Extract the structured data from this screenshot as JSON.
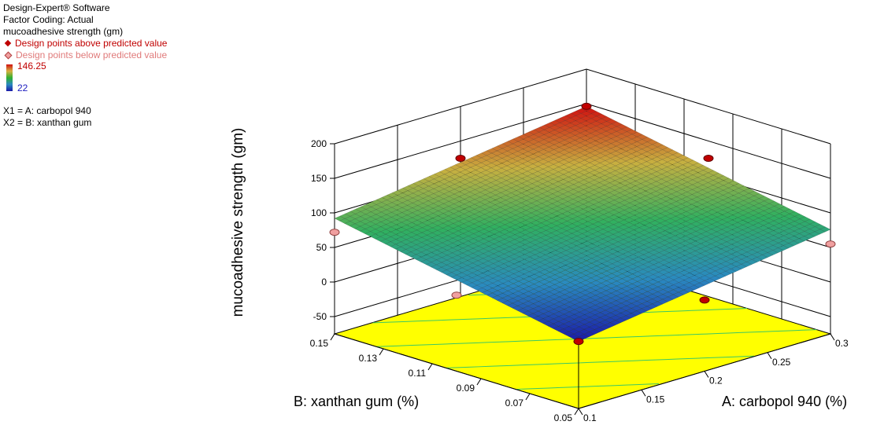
{
  "legend": {
    "software": "Design-Expert® Software",
    "coding": "Factor Coding: Actual",
    "response": "mucoadhesive strength (gm)",
    "above": "Design points above predicted value",
    "below": "Design points below predicted value",
    "cb_max": "146.25",
    "cb_min": "22",
    "x1": "X1 = A: carbopol 940",
    "x2": "X2 = B: xanthan gum"
  },
  "colors": {
    "above": "#c00000",
    "below": "#f0a0a0",
    "floor": "#ffff00",
    "contour": "#3cc864"
  },
  "chart_data": {
    "type": "surface",
    "title": "",
    "xlabel": "A: carbopol 940 (%)",
    "ylabel": "B: xanthan gum (%)",
    "zlabel": "mucoadhesive strength (gm)",
    "x_ticks": [
      "0.1",
      "0.15",
      "0.2",
      "0.25",
      "0.3"
    ],
    "y_ticks": [
      "0.05",
      "0.07",
      "0.09",
      "0.11",
      "0.13",
      "0.15"
    ],
    "z_ticks": [
      "-50",
      "0",
      "50",
      "100",
      "150",
      "200"
    ],
    "xlim": [
      0.1,
      0.3
    ],
    "ylim": [
      0.05,
      0.15
    ],
    "zlim": [
      -75,
      200
    ],
    "surface_corners": [
      {
        "a": 0.1,
        "b": 0.05,
        "z": 22
      },
      {
        "a": 0.3,
        "b": 0.05,
        "z": 76
      },
      {
        "a": 0.1,
        "b": 0.15,
        "z": 92
      },
      {
        "a": 0.3,
        "b": 0.15,
        "z": 146.25
      }
    ],
    "design_points": [
      {
        "a": 0.3,
        "b": 0.15,
        "z": 146.25,
        "type": "above"
      },
      {
        "a": 0.1,
        "b": 0.05,
        "z": 22,
        "type": "above"
      },
      {
        "a": 0.2,
        "b": 0.15,
        "z": 125,
        "type": "above"
      },
      {
        "a": 0.3,
        "b": 0.1,
        "z": 125,
        "type": "above"
      },
      {
        "a": 0.2,
        "b": 0.05,
        "z": 28,
        "type": "above"
      },
      {
        "a": 0.1,
        "b": 0.15,
        "z": 72,
        "type": "below"
      },
      {
        "a": 0.3,
        "b": 0.05,
        "z": 55,
        "type": "below"
      },
      {
        "a": 0.1,
        "b": 0.1,
        "z": 35,
        "type": "below"
      }
    ]
  }
}
